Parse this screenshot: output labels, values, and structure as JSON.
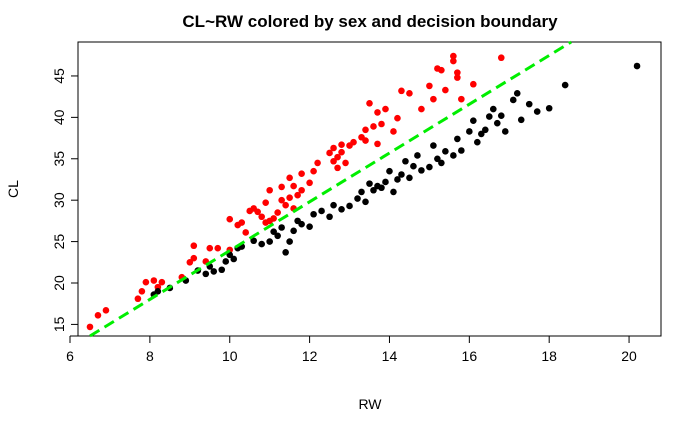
{
  "chart_data": {
    "type": "scatter",
    "title": "CL~RW colored by sex and decision boundary",
    "xlabel": "RW",
    "ylabel": "CL",
    "xlim": [
      6.2,
      20.8
    ],
    "ylim": [
      13.6,
      49.1
    ],
    "xticks": [
      6,
      8,
      10,
      12,
      14,
      16,
      18,
      20
    ],
    "yticks": [
      15,
      20,
      25,
      30,
      35,
      40,
      45
    ],
    "grid": false,
    "legend": "none",
    "boundary": {
      "style": "dashed",
      "color": "#00ee00",
      "x": [
        6.5,
        18.55
      ],
      "y": [
        13.6,
        49.1
      ]
    },
    "series": [
      {
        "color": "#ff0000",
        "points": [
          [
            6.5,
            14.7
          ],
          [
            6.7,
            16.1
          ],
          [
            6.9,
            16.7
          ],
          [
            7.7,
            18.1
          ],
          [
            7.8,
            19.0
          ],
          [
            7.9,
            20.1
          ],
          [
            8.1,
            20.3
          ],
          [
            8.2,
            19.5
          ],
          [
            8.3,
            20.1
          ],
          [
            8.8,
            20.7
          ],
          [
            9.0,
            22.5
          ],
          [
            9.1,
            23.0
          ],
          [
            9.1,
            24.5
          ],
          [
            9.4,
            22.6
          ],
          [
            9.5,
            24.2
          ],
          [
            9.7,
            24.2
          ],
          [
            10.0,
            24.0
          ],
          [
            10.0,
            27.7
          ],
          [
            10.2,
            27.0
          ],
          [
            10.3,
            27.3
          ],
          [
            10.4,
            26.1
          ],
          [
            10.5,
            28.7
          ],
          [
            10.6,
            29.0
          ],
          [
            10.7,
            28.6
          ],
          [
            10.8,
            28.0
          ],
          [
            10.9,
            27.3
          ],
          [
            10.9,
            29.7
          ],
          [
            11.0,
            27.5
          ],
          [
            11.0,
            31.2
          ],
          [
            11.1,
            27.8
          ],
          [
            11.2,
            28.5
          ],
          [
            11.3,
            30.0
          ],
          [
            11.3,
            31.6
          ],
          [
            11.4,
            29.4
          ],
          [
            11.5,
            30.3
          ],
          [
            11.5,
            32.7
          ],
          [
            11.6,
            29.0
          ],
          [
            11.6,
            31.7
          ],
          [
            11.7,
            30.6
          ],
          [
            11.8,
            33.2
          ],
          [
            11.8,
            31.2
          ],
          [
            12.0,
            32.1
          ],
          [
            12.1,
            33.5
          ],
          [
            12.2,
            34.5
          ],
          [
            12.5,
            35.7
          ],
          [
            12.6,
            36.3
          ],
          [
            12.6,
            34.7
          ],
          [
            12.7,
            33.9
          ],
          [
            12.7,
            35.2
          ],
          [
            12.8,
            36.7
          ],
          [
            12.8,
            35.8
          ],
          [
            12.9,
            34.5
          ],
          [
            13.0,
            36.6
          ],
          [
            13.1,
            37.0
          ],
          [
            13.3,
            37.6
          ],
          [
            13.4,
            37.2
          ],
          [
            13.4,
            38.5
          ],
          [
            13.5,
            41.7
          ],
          [
            13.6,
            38.9
          ],
          [
            13.7,
            40.6
          ],
          [
            13.7,
            36.8
          ],
          [
            13.8,
            39.2
          ],
          [
            13.9,
            41.0
          ],
          [
            14.1,
            38.3
          ],
          [
            14.2,
            39.9
          ],
          [
            14.3,
            43.2
          ],
          [
            14.5,
            42.9
          ],
          [
            14.8,
            41.0
          ],
          [
            15.0,
            43.8
          ],
          [
            15.1,
            42.2
          ],
          [
            15.2,
            45.9
          ],
          [
            15.3,
            45.7
          ],
          [
            15.4,
            43.3
          ],
          [
            15.6,
            46.8
          ],
          [
            15.6,
            47.4
          ],
          [
            15.7,
            44.8
          ],
          [
            15.7,
            45.4
          ],
          [
            15.8,
            42.2
          ],
          [
            16.1,
            44.0
          ],
          [
            16.8,
            47.2
          ]
        ]
      },
      {
        "color": "#000000",
        "points": [
          [
            8.1,
            18.6
          ],
          [
            8.2,
            19.0
          ],
          [
            8.5,
            19.4
          ],
          [
            8.9,
            20.3
          ],
          [
            9.2,
            21.5
          ],
          [
            9.4,
            21.1
          ],
          [
            9.5,
            22.0
          ],
          [
            9.6,
            21.4
          ],
          [
            9.8,
            21.6
          ],
          [
            9.9,
            22.6
          ],
          [
            10.1,
            22.9
          ],
          [
            10.0,
            23.4
          ],
          [
            10.2,
            24.2
          ],
          [
            10.3,
            24.4
          ],
          [
            10.6,
            25.1
          ],
          [
            10.8,
            24.7
          ],
          [
            11.0,
            25.0
          ],
          [
            11.1,
            26.2
          ],
          [
            11.2,
            25.7
          ],
          [
            11.3,
            26.7
          ],
          [
            11.4,
            23.7
          ],
          [
            11.5,
            25.0
          ],
          [
            11.6,
            26.3
          ],
          [
            11.7,
            27.5
          ],
          [
            11.8,
            27.1
          ],
          [
            12.0,
            26.8
          ],
          [
            12.1,
            28.3
          ],
          [
            12.3,
            28.7
          ],
          [
            12.5,
            28.0
          ],
          [
            12.6,
            29.4
          ],
          [
            12.8,
            28.9
          ],
          [
            13.0,
            29.3
          ],
          [
            13.2,
            30.2
          ],
          [
            13.3,
            31.0
          ],
          [
            13.4,
            29.8
          ],
          [
            13.5,
            32.0
          ],
          [
            13.6,
            31.2
          ],
          [
            13.7,
            31.7
          ],
          [
            13.8,
            31.5
          ],
          [
            13.9,
            32.2
          ],
          [
            14.0,
            33.5
          ],
          [
            14.1,
            31.0
          ],
          [
            14.2,
            32.5
          ],
          [
            14.3,
            33.1
          ],
          [
            14.4,
            34.7
          ],
          [
            14.5,
            32.7
          ],
          [
            14.6,
            34.1
          ],
          [
            14.7,
            35.4
          ],
          [
            14.8,
            33.6
          ],
          [
            15.0,
            34.0
          ],
          [
            15.1,
            36.6
          ],
          [
            15.2,
            35.0
          ],
          [
            15.3,
            34.5
          ],
          [
            15.4,
            35.9
          ],
          [
            15.6,
            35.4
          ],
          [
            15.7,
            37.4
          ],
          [
            15.8,
            36.0
          ],
          [
            16.0,
            38.3
          ],
          [
            16.1,
            39.6
          ],
          [
            16.2,
            37.0
          ],
          [
            16.3,
            38.0
          ],
          [
            16.4,
            38.5
          ],
          [
            16.5,
            40.1
          ],
          [
            16.6,
            41.0
          ],
          [
            16.7,
            39.3
          ],
          [
            16.8,
            40.2
          ],
          [
            16.9,
            38.3
          ],
          [
            17.1,
            42.1
          ],
          [
            17.2,
            42.9
          ],
          [
            17.3,
            39.7
          ],
          [
            17.5,
            41.6
          ],
          [
            17.7,
            40.7
          ],
          [
            18.0,
            41.1
          ],
          [
            18.4,
            43.9
          ],
          [
            20.2,
            46.2
          ]
        ]
      }
    ]
  }
}
